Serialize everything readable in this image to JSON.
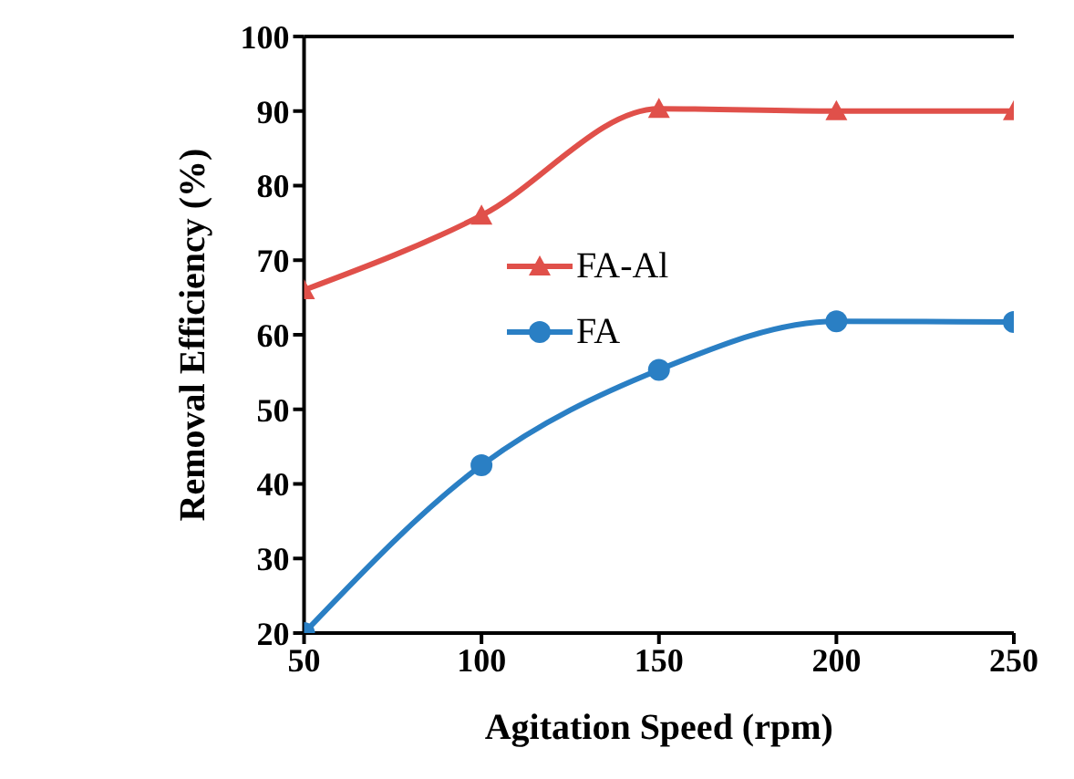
{
  "chart_data": {
    "type": "line",
    "xlabel": "Agitation Speed (rpm)",
    "ylabel": "Removal Efficiency (%)",
    "x": [
      50,
      100,
      150,
      200,
      250
    ],
    "series": [
      {
        "name": "FA-Al",
        "color": "#e0504a",
        "marker": "triangle",
        "values": [
          66,
          76,
          90.3,
          90,
          90
        ]
      },
      {
        "name": "FA",
        "color": "#2a7fc4",
        "marker": "circle",
        "values": [
          20,
          42.5,
          55.3,
          61.8,
          61.7
        ]
      }
    ],
    "xlim": [
      50,
      250
    ],
    "xticks": [
      50,
      100,
      150,
      200,
      250
    ],
    "ylim": [
      20,
      100
    ],
    "yticks": [
      20,
      30,
      40,
      50,
      60,
      70,
      80,
      90,
      100
    ],
    "grid": false,
    "legend": "left",
    "line_style": "solid"
  }
}
